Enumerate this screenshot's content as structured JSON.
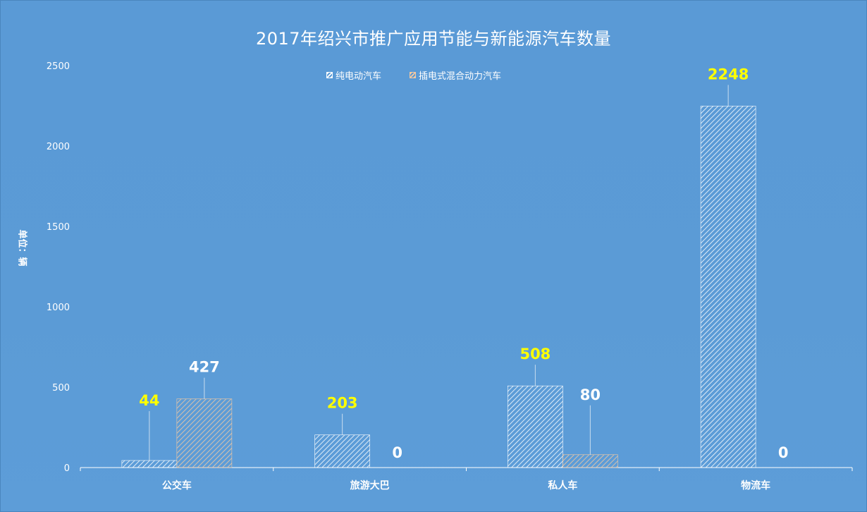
{
  "chart_data": {
    "type": "bar",
    "title": "2017年绍兴市推广应用节能与新能源汽车数量",
    "ylabel": "单位：辆",
    "xlabel": "",
    "categories": [
      "公交车",
      "旅游大巴",
      "私人车",
      "物流车"
    ],
    "series": [
      {
        "name": "纯电动汽车",
        "values": [
          44,
          203,
          508,
          2248
        ],
        "color": "#ffffff",
        "label_color": "#ffff00"
      },
      {
        "name": "插电式混合动力汽车",
        "values": [
          427,
          0,
          80,
          0
        ],
        "color": "#f6c9a0",
        "label_color": "#ffffff"
      }
    ],
    "ylim": [
      0,
      2500
    ],
    "yticks": [
      0,
      500,
      1000,
      1500,
      2000,
      2500
    ],
    "grid": false,
    "legend": "top-center",
    "background": "#5b9bd5"
  }
}
